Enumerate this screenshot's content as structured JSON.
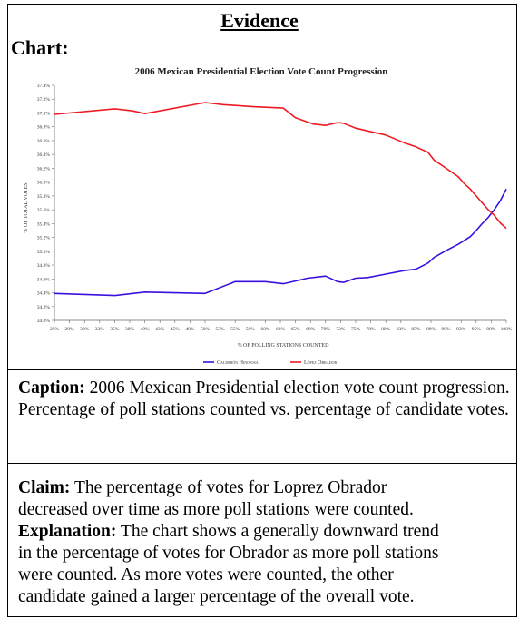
{
  "heading": "Evidence",
  "chart_label": "Chart:",
  "caption": {
    "label": "Caption:",
    "text": "2006 Mexican Presidential election vote count progression. Percentage of poll stations counted vs. percentage of candidate votes."
  },
  "claim": {
    "label": "Claim:",
    "line1": "The percentage of votes for Loprez Obrador",
    "line2": "decreased over time as more poll stations were counted."
  },
  "explanation": {
    "label": "Explanation:",
    "line1": "The chart shows a generally downward trend",
    "line2": "in the percentage of votes for Obrador as more poll stations",
    "line3": "were counted. As more votes were counted, the other",
    "line4": "candidate gained a larger percentage of the overall vote."
  },
  "colors": {
    "calderon": "#3a10e0",
    "lopez": "#ee1b24"
  },
  "chart_data": {
    "type": "line",
    "title": "2006 Mexican Presidential Election Vote Count Progression",
    "xlabel": "% OF POLLING STATIONS COUNTED",
    "ylabel": "% OF TOTAL VOTES",
    "xlim": [
      25,
      100
    ],
    "ylim": [
      34.0,
      37.4
    ],
    "x_ticks": [
      "25%",
      "28%",
      "30%",
      "33%",
      "35%",
      "38%",
      "40%",
      "43%",
      "45%",
      "48%",
      "50%",
      "53%",
      "55%",
      "58%",
      "60%",
      "63%",
      "65%",
      "68%",
      "70%",
      "73%",
      "75%",
      "78%",
      "80%",
      "83%",
      "85%",
      "88%",
      "90%",
      "93%",
      "95%",
      "98%",
      "100%"
    ],
    "y_ticks": [
      "34.0%",
      "34.2%",
      "34.4%",
      "34.6%",
      "34.8%",
      "35.0%",
      "35.2%",
      "35.4%",
      "35.6%",
      "35.8%",
      "36.0%",
      "36.2%",
      "36.4%",
      "36.6%",
      "36.8%",
      "37.0%",
      "37.2%",
      "37.4%"
    ],
    "grid": false,
    "legend_position": "bottom",
    "series": [
      {
        "name": "Calderón Hinojosa",
        "x": [
          25,
          35,
          40,
          50,
          55,
          60,
          63,
          65,
          67,
          70,
          72,
          73,
          75,
          77,
          80,
          83,
          85,
          87,
          88,
          90,
          92,
          94,
          95,
          96,
          97,
          98,
          99,
          100
        ],
        "y": [
          34.39,
          34.36,
          34.41,
          34.39,
          34.56,
          34.56,
          34.53,
          34.57,
          34.61,
          34.64,
          34.56,
          34.55,
          34.61,
          34.62,
          34.67,
          34.72,
          34.74,
          34.83,
          34.91,
          35.01,
          35.1,
          35.21,
          35.3,
          35.4,
          35.49,
          35.6,
          35.73,
          35.9
        ]
      },
      {
        "name": "López Obrador",
        "x": [
          25,
          35,
          38,
          40,
          50,
          53,
          58,
          63,
          65,
          68,
          70,
          72,
          73,
          75,
          77,
          80,
          83,
          85,
          87,
          88,
          90,
          92,
          93,
          94,
          95,
          96,
          97,
          98,
          99,
          100
        ],
        "y": [
          36.98,
          37.06,
          37.03,
          36.99,
          37.15,
          37.12,
          37.09,
          37.07,
          36.93,
          36.84,
          36.82,
          36.86,
          36.85,
          36.78,
          36.74,
          36.68,
          36.57,
          36.51,
          36.43,
          36.32,
          36.2,
          36.08,
          35.98,
          35.9,
          35.8,
          35.7,
          35.6,
          35.52,
          35.41,
          35.33
        ]
      }
    ]
  }
}
